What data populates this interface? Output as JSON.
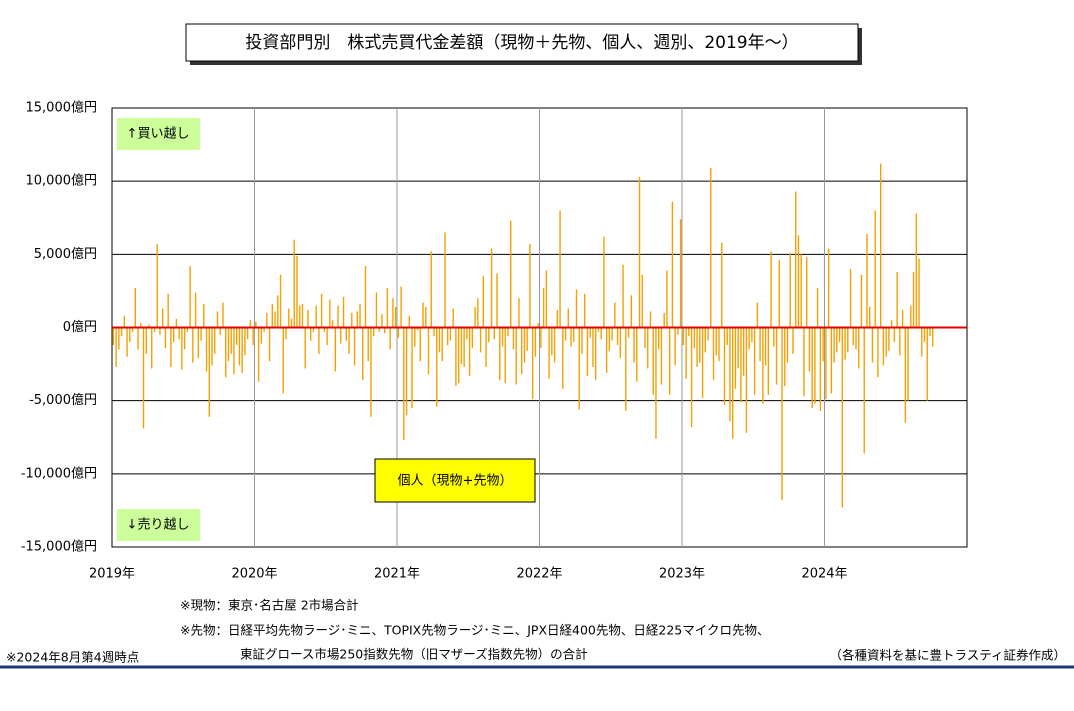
{
  "chart_data": {
    "type": "bar",
    "title": "投資部門別　株式売買代金差額（現物＋先物、個人、週別、2019年～）",
    "categories": [
      "2019年",
      "2020年",
      "2021年",
      "2022年",
      "2023年",
      "2024年"
    ],
    "values": [
      [
        -1200,
        -2700,
        -1500,
        -600,
        800,
        -2000,
        -1000,
        -300,
        2700,
        -1500,
        300,
        -6900,
        -1800,
        200,
        -2800,
        -300,
        5700,
        -500,
        1300,
        -1400,
        2300,
        -2700,
        -1000,
        600,
        -800,
        -2900,
        -1500,
        -300,
        4200,
        -2400,
        2400,
        -2100,
        -900,
        1600,
        -3000,
        -6100,
        -2600,
        -1800,
        1100,
        -500,
        1700,
        -3400,
        -2300,
        -1800,
        -3200,
        -1200,
        -2600,
        -3100,
        -1900,
        -800,
        500,
        -1200
      ],
      [
        400,
        -3700,
        -1100,
        -300,
        1000,
        -2300,
        1600,
        1100,
        2200,
        3600,
        -4500,
        -800,
        1300,
        600,
        6000,
        4900,
        1500,
        1600,
        -2800,
        1200,
        -900,
        -300,
        1500,
        -1800,
        2300,
        -300,
        -1200,
        1900,
        500,
        -3000,
        1500,
        -1100,
        2100,
        -900,
        -1800,
        1000,
        -2600,
        1100,
        1600,
        -3600,
        4200,
        -2300,
        -6100,
        -600,
        2400,
        -300,
        900,
        -400,
        2700,
        -1500,
        2000,
        1400
      ],
      [
        -700,
        2800,
        -7700,
        -6000,
        800,
        -5500,
        -1300,
        -200,
        -2300,
        1700,
        1400,
        -3200,
        5200,
        -600,
        -5400,
        -1700,
        -2300,
        6500,
        -1200,
        -900,
        1300,
        -4000,
        -3800,
        -2500,
        -2700,
        -800,
        -3300,
        -1400,
        1400,
        2000,
        -1700,
        3500,
        -2700,
        -1000,
        5400,
        -800,
        3700,
        -3600,
        -1300,
        -3800,
        -600,
        7300,
        -1500,
        -3900,
        2000,
        -3200,
        -2400,
        -1600,
        5700,
        -4900,
        -2000,
        300
      ],
      [
        -1400,
        2700,
        3900,
        -3500,
        -1900,
        -2400,
        1200,
        8000,
        -4200,
        -900,
        1300,
        -1300,
        -1000,
        2600,
        -5600,
        -1800,
        2300,
        -3300,
        -700,
        -2700,
        -3600,
        -300,
        -800,
        6200,
        -3100,
        -1600,
        -900,
        1700,
        -1200,
        -2100,
        4300,
        -5700,
        -700,
        2200,
        -2400,
        -3700,
        10300,
        3600,
        -1400,
        -2800,
        1100,
        -4600,
        -7600,
        -1500,
        -3900,
        1000,
        3900,
        -4600,
        8600,
        -2600,
        -500,
        7400
      ],
      [
        -1200,
        -3500,
        -600,
        -6800,
        -1400,
        -2700,
        -2400,
        -4800,
        -1700,
        -900,
        10900,
        -3600,
        -1900,
        -2300,
        5800,
        -5300,
        -1200,
        -6400,
        -7600,
        -4200,
        -2800,
        -5100,
        -3300,
        -7200,
        -1500,
        -1000,
        -4600,
        1700,
        -2300,
        -5200,
        -2600,
        -4600,
        5200,
        -1300,
        -3900,
        4600,
        -11800,
        -4000,
        -2400,
        5100,
        -1800,
        9300,
        6300,
        5000,
        -4700,
        4800,
        -3000,
        -5500,
        -5200,
        2700,
        -5700,
        -2300
      ],
      [
        -4900,
        5400,
        -4500,
        -2400,
        -1700,
        -1000,
        -12300,
        -2200,
        -1700,
        4000,
        -1200,
        -1500,
        -2800,
        3600,
        -8600,
        6400,
        1400,
        -2400,
        8000,
        -3400,
        11200,
        -2600,
        -2000,
        -1600,
        500,
        -1000,
        3800,
        -1900,
        1200,
        -6500,
        -5000,
        1500,
        3800,
        7800,
        4700,
        -2000,
        -1000,
        -5000,
        -600,
        -1300
      ]
    ],
    "color": "#f5a000",
    "zero_line_color": "#e00000",
    "ylim": [
      -15000,
      15000
    ],
    "yticks": [
      {
        "value": -15000,
        "label": "-15,000億円"
      },
      {
        "value": -10000,
        "label": "-10,000億円"
      },
      {
        "value": -5000,
        "label": "-5,000億円"
      },
      {
        "value": 0,
        "label": "0億円"
      },
      {
        "value": 5000,
        "label": "5,000億円"
      },
      {
        "value": 10000,
        "label": "10,000億円"
      },
      {
        "value": 15000,
        "label": "15,000億円"
      }
    ],
    "grid": true,
    "annotations": {
      "buy": "↑買い越し",
      "sell": "↓売り越し",
      "series_label": "個人（現物+先物）"
    },
    "notes": [
      "※現物：東京･名古屋 2市場合計",
      "※先物：日経平均先物ラージ･ミニ、TOPIX先物ラージ･ミニ、JPX日経400先物、日経225マイクロ先物、",
      "東証グロース市場250指数先物（旧マザーズ指数先物）の合計",
      "※2024年8月第4週時点",
      "（各種資料を基に豊トラスティ証券作成）"
    ]
  }
}
